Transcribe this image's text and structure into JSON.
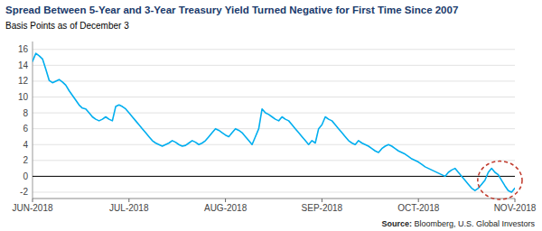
{
  "chart_data": {
    "type": "line",
    "title": "Spread Between 5-Year and 3-Year Treasury Yield Turned Negative for First Time Since 2007",
    "subtitle": "Basis Points as of December 3",
    "source": "Source: Bloomberg, U.S. Global Investors",
    "color": "#00AEEF",
    "grid": true,
    "ylim": [
      -2.8,
      17.0
    ],
    "yticks": [
      -2,
      0,
      2,
      4,
      6,
      8,
      10,
      12,
      14,
      16
    ],
    "categories": [
      "JUN-2018",
      null,
      null,
      null,
      null,
      null,
      null,
      null,
      null,
      null,
      null,
      null,
      null,
      null,
      null,
      null,
      null,
      null,
      null,
      null,
      null,
      null,
      null,
      null,
      null,
      null,
      null,
      null,
      null,
      "JUL-2018",
      null,
      null,
      null,
      null,
      null,
      null,
      null,
      null,
      null,
      null,
      null,
      null,
      null,
      null,
      null,
      null,
      null,
      null,
      null,
      null,
      null,
      null,
      null,
      null,
      null,
      null,
      null,
      null,
      "AUG-2018",
      null,
      null,
      null,
      null,
      null,
      null,
      null,
      null,
      null,
      null,
      null,
      null,
      null,
      null,
      null,
      null,
      null,
      null,
      null,
      null,
      null,
      null,
      null,
      null,
      null,
      null,
      null,
      null,
      "SEP-2018",
      null,
      null,
      null,
      null,
      null,
      null,
      null,
      null,
      null,
      null,
      null,
      null,
      null,
      null,
      null,
      null,
      null,
      null,
      null,
      null,
      null,
      null,
      null,
      null,
      null,
      null,
      null,
      null,
      "OCT-2018",
      null,
      null,
      null,
      null,
      null,
      null,
      null,
      null,
      null,
      null,
      null,
      null,
      null,
      null,
      null,
      null,
      null,
      null,
      null,
      null,
      null,
      null,
      null,
      null,
      null,
      null,
      null,
      null,
      "NOV-2018"
    ],
    "values": [
      14.5,
      15.5,
      15.2,
      14.8,
      13.5,
      12.1,
      11.8,
      12.0,
      12.2,
      11.9,
      11.5,
      10.8,
      10.2,
      9.6,
      9.0,
      8.6,
      8.5,
      8.0,
      7.5,
      7.2,
      7.0,
      7.2,
      7.5,
      7.2,
      7.0,
      8.8,
      9.0,
      8.8,
      8.5,
      8.0,
      7.5,
      7.0,
      6.5,
      6.0,
      5.5,
      5.0,
      4.5,
      4.2,
      4.0,
      3.8,
      4.0,
      4.2,
      4.5,
      4.3,
      4.0,
      3.8,
      3.9,
      4.2,
      4.5,
      4.3,
      4.0,
      4.2,
      4.5,
      5.0,
      5.5,
      6.0,
      5.8,
      5.5,
      5.2,
      5.0,
      5.5,
      6.0,
      5.8,
      5.5,
      5.0,
      4.5,
      4.0,
      5.0,
      6.0,
      8.5,
      8.0,
      7.8,
      7.5,
      7.2,
      7.0,
      7.5,
      7.2,
      7.0,
      6.5,
      6.0,
      5.5,
      5.0,
      4.5,
      4.0,
      4.5,
      4.2,
      6.0,
      6.5,
      7.5,
      7.2,
      7.0,
      6.5,
      6.0,
      5.5,
      5.0,
      4.5,
      4.2,
      4.0,
      4.5,
      4.2,
      4.0,
      3.8,
      3.5,
      3.2,
      3.0,
      3.5,
      3.8,
      4.0,
      3.8,
      3.5,
      3.2,
      3.0,
      2.8,
      2.5,
      2.2,
      2.0,
      1.8,
      1.5,
      1.2,
      1.0,
      0.8,
      0.6,
      0.4,
      0.2,
      0.0,
      0.5,
      0.8,
      1.0,
      0.5,
      0.0,
      -0.5,
      -1.0,
      -1.5,
      -1.8,
      -1.5,
      -1.0,
      -0.5,
      0.5,
      1.0,
      0.5,
      0.2,
      -0.5,
      -1.2,
      -1.8,
      -2.0,
      -1.5
    ]
  }
}
